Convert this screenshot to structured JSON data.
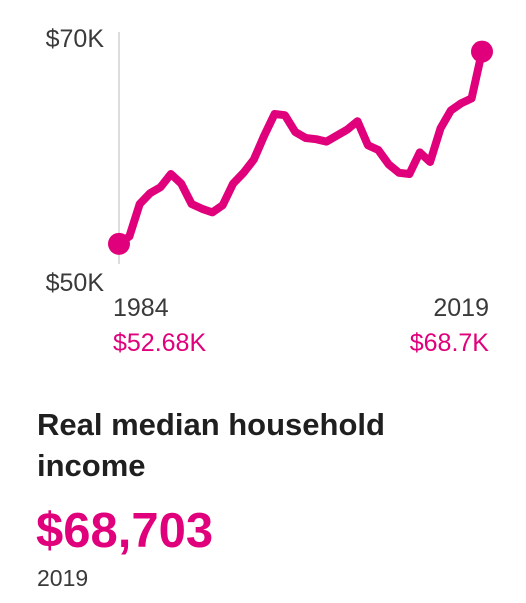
{
  "colors": {
    "accent": "#e0007b",
    "axis": "#dddddd",
    "text": "#3a3a3a",
    "title": "#1f1f1f"
  },
  "headline": {
    "title": "Real median household income",
    "value": "$68,703",
    "year": "2019"
  },
  "chart_data": {
    "type": "line",
    "ylim": [
      50000,
      70000
    ],
    "grid": false,
    "y_tick_labels": [
      "$70K",
      "$50K"
    ],
    "start_label": {
      "year": "1984",
      "value": "$52.68K"
    },
    "end_label": {
      "year": "2019",
      "value": "$68.7K"
    },
    "x": [
      1984,
      1985,
      1986,
      1987,
      1988,
      1989,
      1990,
      1991,
      1992,
      1993,
      1994,
      1995,
      1996,
      1997,
      1998,
      1999,
      2000,
      2001,
      2002,
      2003,
      2004,
      2005,
      2006,
      2007,
      2008,
      2009,
      2010,
      2011,
      2012,
      2013,
      2014,
      2015,
      2016,
      2017,
      2018,
      2019
    ],
    "y": [
      52680,
      53300,
      56000,
      56900,
      57400,
      58500,
      57700,
      56000,
      55600,
      55300,
      55900,
      57700,
      58600,
      59700,
      61700,
      63500,
      63400,
      62000,
      61500,
      61400,
      61200,
      61700,
      62200,
      62900,
      60900,
      60500,
      59300,
      58600,
      58500,
      60300,
      59500,
      62300,
      63800,
      64400,
      64800,
      68700
    ]
  }
}
